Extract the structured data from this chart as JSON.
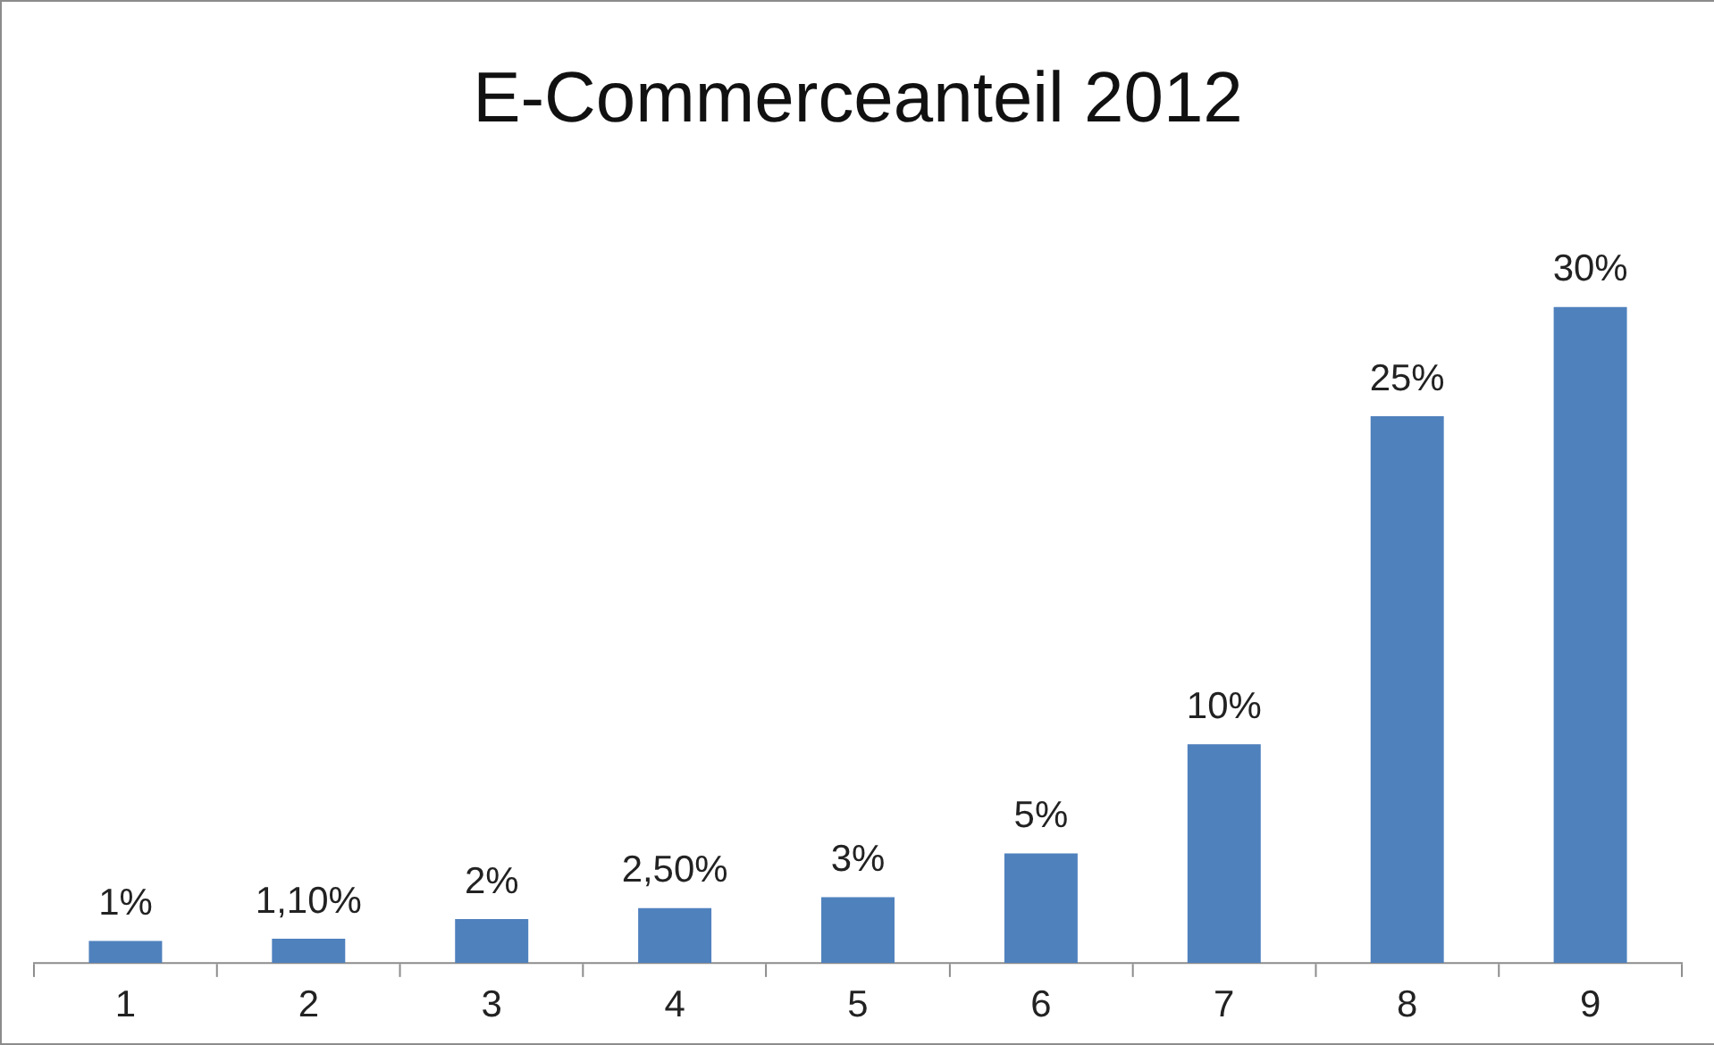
{
  "chart_data": {
    "type": "bar",
    "title": "E-Commerceanteil 2012",
    "categories": [
      "1",
      "2",
      "3",
      "4",
      "5",
      "6",
      "7",
      "8",
      "9"
    ],
    "values": [
      1,
      1.1,
      2,
      2.5,
      3,
      5,
      10,
      25,
      30
    ],
    "value_labels": [
      "1%",
      "1,10%",
      "2%",
      "2,50%",
      "3%",
      "5%",
      "10%",
      "25%",
      "30%"
    ],
    "color": "#4f81bd",
    "grid": false,
    "legend": false
  }
}
